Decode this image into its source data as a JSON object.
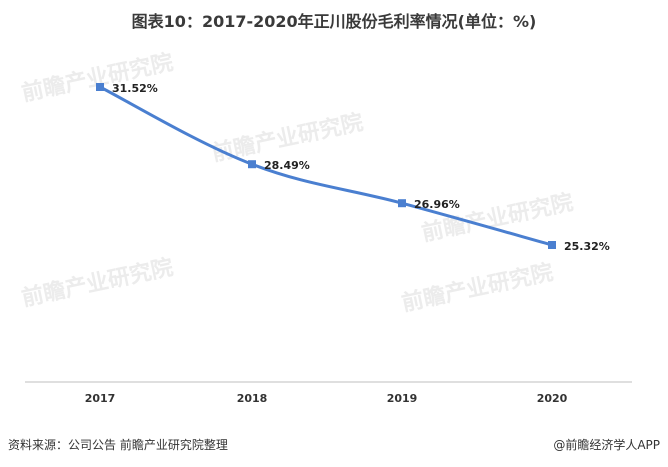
{
  "chart_data": {
    "type": "line",
    "title": "图表10：2017-2020年正川股份毛利率情况(单位：%)",
    "categories": [
      "2017",
      "2018",
      "2019",
      "2020"
    ],
    "values": [
      31.52,
      28.49,
      26.96,
      25.32
    ],
    "data_labels": [
      "31.52%",
      "28.49%",
      "26.96%",
      "25.32%"
    ],
    "unit": "%",
    "xlabel": "",
    "ylabel": "",
    "grid": false,
    "colors": {
      "line": "#4a7fd0",
      "marker": "#4a7fd0",
      "axis": "#bfbfbf"
    }
  },
  "footer": {
    "source": "资料来源：公司公告 前瞻产业研究院整理",
    "brand": "@前瞻经济学人APP"
  },
  "watermark": {
    "text": "前瞻产业研究院"
  }
}
